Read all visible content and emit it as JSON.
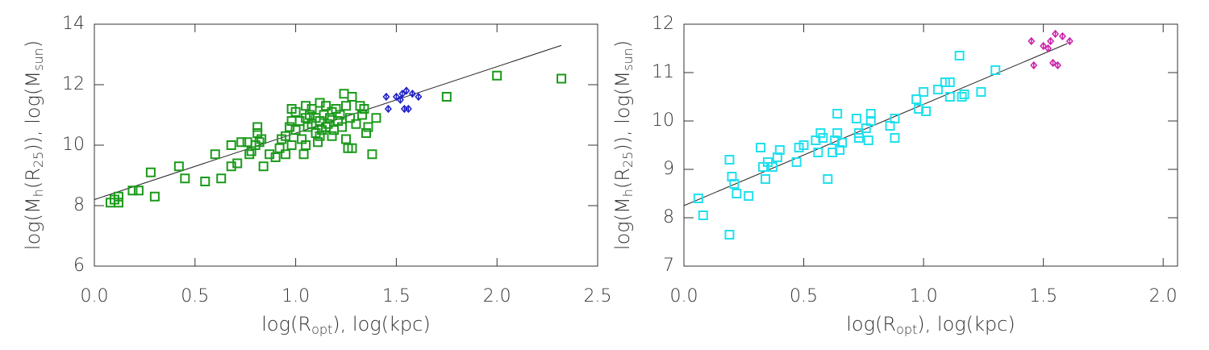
{
  "chart_data": [
    {
      "type": "scatter",
      "xlabel": [
        "log(R",
        "opt",
        "), log(kpc)"
      ],
      "ylabel": [
        "log(M",
        "h",
        "(R",
        "25",
        ")), log(M",
        "sun",
        ")"
      ],
      "xlim": [
        0,
        2.5
      ],
      "ylim": [
        6,
        14
      ],
      "xticks": [
        {
          "value": 0,
          "label": "0.0"
        },
        {
          "value": 0.5,
          "label": "0.5"
        },
        {
          "value": 1,
          "label": "1.0"
        },
        {
          "value": 1.5,
          "label": "1.5"
        },
        {
          "value": 2,
          "label": "2.0"
        },
        {
          "value": 2.5,
          "label": "2.5"
        }
      ],
      "yticks": [
        6,
        8,
        10,
        12,
        14
      ],
      "series": [
        {
          "color": "#1a9a1a",
          "marker": "square",
          "x": [
            0.08,
            0.1,
            0.12,
            0.12,
            0.19,
            0.22,
            0.28,
            0.3,
            0.42,
            0.45,
            0.55,
            0.6,
            0.63,
            0.68,
            0.68,
            0.71,
            0.73,
            0.76,
            0.77,
            0.78,
            0.8,
            0.81,
            0.81,
            0.82,
            0.83,
            0.84,
            0.87,
            0.9,
            0.92,
            0.93,
            0.95,
            0.95,
            0.97,
            0.98,
            0.98,
            1.0,
            1.0,
            1.02,
            1.03,
            1.04,
            1.05,
            1.05,
            1.06,
            1.07,
            1.08,
            1.08,
            1.1,
            1.1,
            1.11,
            1.12,
            1.12,
            1.13,
            1.14,
            1.15,
            1.16,
            1.17,
            1.18,
            1.19,
            1.2,
            1.21,
            1.22,
            1.23,
            1.24,
            1.25,
            1.25,
            1.26,
            1.27,
            1.28,
            1.3,
            1.32,
            1.33,
            1.34,
            1.35,
            1.36,
            1.38,
            1.4,
            1.75,
            2.0,
            2.32,
            1.12,
            1.15,
            1.05,
            0.98,
            1.18,
            1.28
          ],
          "values": [
            8.1,
            8.2,
            8.1,
            8.3,
            8.5,
            8.5,
            9.1,
            8.3,
            9.3,
            8.9,
            8.8,
            9.7,
            8.9,
            9.3,
            10.0,
            9.4,
            10.1,
            10.1,
            9.7,
            9.8,
            10.0,
            10.6,
            10.4,
            10.1,
            10.2,
            9.3,
            9.7,
            9.6,
            9.9,
            10.2,
            10.3,
            9.7,
            10.6,
            11.2,
            10.0,
            10.5,
            11.1,
            10.8,
            10.2,
            9.7,
            10.0,
            10.9,
            10.6,
            11.0,
            10.7,
            11.2,
            10.4,
            10.9,
            10.1,
            11.4,
            10.8,
            10.5,
            11.0,
            11.3,
            10.7,
            10.9,
            11.1,
            10.5,
            11.2,
            10.8,
            11.0,
            10.6,
            11.7,
            10.2,
            11.3,
            9.9,
            10.9,
            9.9,
            10.7,
            11.3,
            11.0,
            11.2,
            10.4,
            10.6,
            9.7,
            10.9,
            11.6,
            12.3,
            12.2,
            10.3,
            10.6,
            11.3,
            10.8,
            10.3,
            11.6
          ]
        },
        {
          "color": "#1f1fc8",
          "marker": "diamond",
          "x": [
            1.45,
            1.46,
            1.5,
            1.52,
            1.53,
            1.54,
            1.55,
            1.56,
            1.58,
            1.61
          ],
          "values": [
            11.6,
            11.2,
            11.6,
            11.5,
            11.7,
            11.2,
            11.8,
            11.2,
            11.7,
            11.6
          ],
          "errors": [
            0.08,
            0.08,
            0.08,
            0.08,
            0.08,
            0.08,
            0.08,
            0.08,
            0.08,
            0.08
          ]
        }
      ],
      "fit": {
        "color": "#222222",
        "x": [
          0,
          2.32
        ],
        "values": [
          8.2,
          13.3
        ]
      }
    },
    {
      "type": "scatter",
      "xlabel": [
        "log(R",
        "opt",
        "), log(kpc)"
      ],
      "ylabel": [
        "log(M",
        "h",
        "(R",
        "25",
        ")), log(M",
        "sun",
        ")"
      ],
      "xlim": [
        0,
        2.06
      ],
      "ylim": [
        7,
        12
      ],
      "xticks": [
        {
          "value": 0,
          "label": "0.0"
        },
        {
          "value": 0.5,
          "label": "0.5"
        },
        {
          "value": 1,
          "label": "1.0"
        },
        {
          "value": 1.5,
          "label": "1.5"
        },
        {
          "value": 2,
          "label": "2.0"
        }
      ],
      "yticks": [
        7,
        8,
        9,
        10,
        11,
        12
      ],
      "series": [
        {
          "color": "#22e0ee",
          "marker": "square",
          "x": [
            0.06,
            0.08,
            0.19,
            0.19,
            0.2,
            0.21,
            0.22,
            0.27,
            0.32,
            0.33,
            0.34,
            0.35,
            0.37,
            0.39,
            0.4,
            0.47,
            0.48,
            0.5,
            0.55,
            0.56,
            0.57,
            0.58,
            0.6,
            0.62,
            0.63,
            0.64,
            0.64,
            0.65,
            0.66,
            0.72,
            0.73,
            0.73,
            0.76,
            0.77,
            0.78,
            0.78,
            0.86,
            0.88,
            0.88,
            0.97,
            0.98,
            1.0,
            1.01,
            1.06,
            1.09,
            1.11,
            1.11,
            1.15,
            1.16,
            1.17,
            1.24,
            1.3
          ],
          "values": [
            8.4,
            8.05,
            7.65,
            9.2,
            8.85,
            8.7,
            8.5,
            8.45,
            9.45,
            9.05,
            8.8,
            9.15,
            9.05,
            9.25,
            9.4,
            9.15,
            9.45,
            9.5,
            9.6,
            9.35,
            9.75,
            9.65,
            8.8,
            9.35,
            9.6,
            10.15,
            9.75,
            9.4,
            9.55,
            10.05,
            9.65,
            9.75,
            9.85,
            9.6,
            10.15,
            10.0,
            9.9,
            10.05,
            9.65,
            10.45,
            10.25,
            10.6,
            10.2,
            10.65,
            10.8,
            10.8,
            10.5,
            11.35,
            10.5,
            10.55,
            10.6,
            11.05
          ]
        },
        {
          "color": "#cc22aa",
          "marker": "diamond",
          "x": [
            1.45,
            1.46,
            1.5,
            1.52,
            1.53,
            1.54,
            1.55,
            1.56,
            1.58,
            1.61
          ],
          "values": [
            11.65,
            11.15,
            11.55,
            11.5,
            11.65,
            11.2,
            11.8,
            11.15,
            11.75,
            11.65
          ],
          "errors": [
            0.06,
            0.06,
            0.06,
            0.06,
            0.06,
            0.06,
            0.06,
            0.06,
            0.06,
            0.06
          ]
        }
      ],
      "fit": {
        "color": "#222222",
        "x": [
          0,
          1.6
        ],
        "values": [
          8.25,
          11.6
        ]
      }
    }
  ]
}
